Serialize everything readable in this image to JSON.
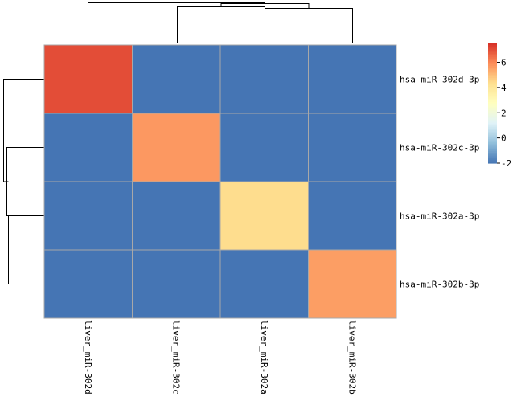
{
  "chart_data": {
    "type": "heatmap",
    "rows": [
      "hsa-miR-302d-3p",
      "hsa-miR-302c-3p",
      "hsa-miR-302a-3p",
      "hsa-miR-302b-3p"
    ],
    "columns": [
      "liver_miR-302d",
      "liver_miR-302c",
      "liver_miR-302a",
      "liver_miR-302b"
    ],
    "values": [
      [
        7.0,
        -2.0,
        -2.0,
        -2.0
      ],
      [
        -2.0,
        5.7,
        -2.0,
        -2.0
      ],
      [
        -2.0,
        -2.0,
        4.4,
        -2.0
      ],
      [
        -2.0,
        -2.0,
        -2.0,
        5.6
      ]
    ],
    "colorbar": {
      "range": [
        -2,
        7.5
      ],
      "ticks": [
        "-2",
        "0",
        "2",
        "4",
        "6"
      ],
      "colors": [
        "#4575B4",
        "#91BFDB",
        "#E0F3F8",
        "#FFFFBF",
        "#FEE090",
        "#FC8D59",
        "#D73027"
      ]
    },
    "row_dendrogram": true,
    "column_dendrogram": true,
    "grid": true
  }
}
